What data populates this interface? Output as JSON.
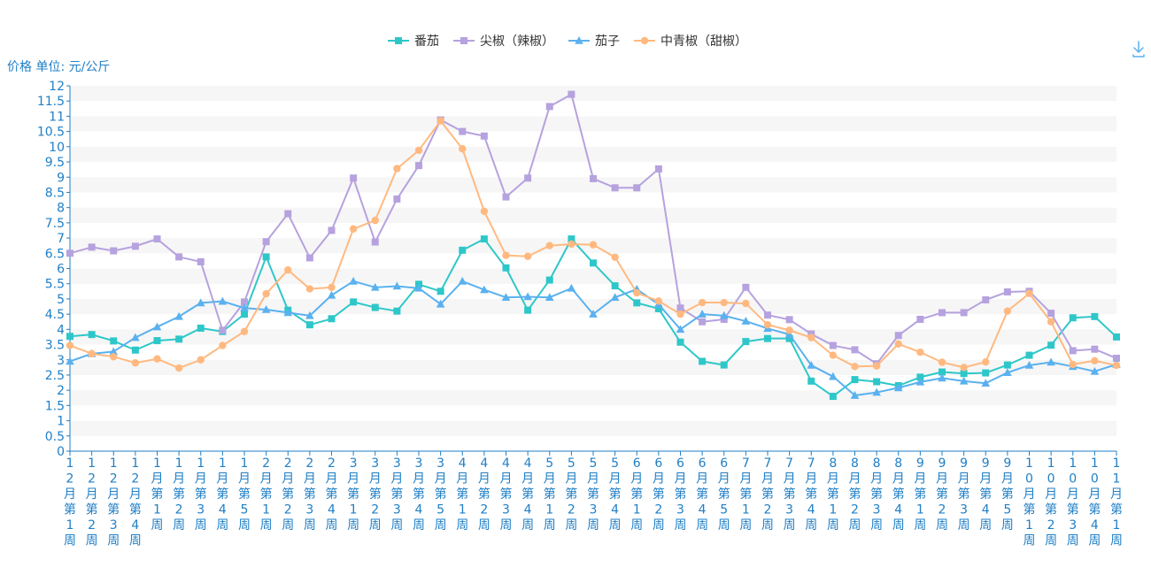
{
  "chart_data": {
    "type": "line",
    "ylabel": "价格 单位: 元/公斤",
    "ylim": [
      0,
      12
    ],
    "ytick_step": 0.5,
    "grid": "horizontal-bands",
    "legend_position": "top-center",
    "categories": [
      "12月第1周",
      "12月第2周",
      "12月第3周",
      "12月第4周",
      "1月第1周",
      "1月第2周",
      "1月第3周",
      "1月第4周",
      "1月第5周",
      "2月第1周",
      "2月第2周",
      "2月第3周",
      "2月第4周",
      "3月第1周",
      "3月第2周",
      "3月第3周",
      "3月第4周",
      "3月第5周",
      "4月第1周",
      "4月第2周",
      "4月第3周",
      "4月第4周",
      "5月第1周",
      "5月第2周",
      "5月第3周",
      "5月第4周",
      "6月第1周",
      "6月第2周",
      "6月第3周",
      "6月第4周",
      "6月第5周",
      "7月第1周",
      "7月第2周",
      "7月第3周",
      "7月第4周",
      "8月第1周",
      "8月第2周",
      "8月第3周",
      "8月第4周",
      "9月第1周",
      "9月第2周",
      "9月第3周",
      "9月第4周",
      "9月第5周",
      "10月第1周",
      "10月第2周",
      "10月第3周",
      "10月第4周",
      "11月第1周"
    ],
    "series": [
      {
        "name": "番茄",
        "color": "#2ec7c9",
        "marker": "square",
        "values": [
          3.77,
          3.83,
          3.62,
          3.32,
          3.63,
          3.68,
          4.04,
          3.93,
          4.5,
          6.38,
          4.63,
          4.15,
          4.35,
          4.9,
          4.72,
          4.6,
          5.48,
          5.25,
          6.6,
          6.97,
          6.02,
          4.63,
          5.62,
          6.97,
          6.18,
          5.43,
          4.87,
          4.68,
          3.58,
          2.95,
          2.83,
          3.6,
          3.7,
          3.7,
          2.3,
          1.8,
          2.35,
          2.28,
          2.15,
          2.43,
          2.6,
          2.55,
          2.57,
          2.83,
          3.15,
          3.48,
          4.38,
          4.42,
          3.75
        ]
      },
      {
        "name": "尖椒（辣椒）",
        "color": "#b6a2de",
        "marker": "square",
        "values": [
          6.5,
          6.7,
          6.58,
          6.73,
          6.97,
          6.38,
          6.22,
          3.97,
          4.9,
          6.88,
          7.8,
          6.35,
          7.25,
          8.97,
          6.87,
          8.28,
          9.38,
          10.88,
          10.5,
          10.35,
          8.35,
          8.97,
          11.32,
          11.72,
          8.95,
          8.65,
          8.65,
          9.27,
          4.7,
          4.25,
          4.33,
          5.38,
          4.47,
          4.32,
          3.85,
          3.47,
          3.33,
          2.87,
          3.8,
          4.33,
          4.55,
          4.55,
          4.97,
          5.23,
          5.25,
          4.53,
          3.3,
          3.35,
          3.05
        ]
      },
      {
        "name": "茄子",
        "color": "#5ab1ef",
        "marker": "triangle",
        "values": [
          2.95,
          3.2,
          3.27,
          3.73,
          4.08,
          4.42,
          4.87,
          4.92,
          4.7,
          4.65,
          4.55,
          4.45,
          5.12,
          5.58,
          5.38,
          5.42,
          5.35,
          4.83,
          5.58,
          5.3,
          5.05,
          5.07,
          5.05,
          5.35,
          4.5,
          5.05,
          5.32,
          4.82,
          4.0,
          4.5,
          4.45,
          4.27,
          4.03,
          3.83,
          2.82,
          2.45,
          1.83,
          1.93,
          2.08,
          2.27,
          2.4,
          2.3,
          2.23,
          2.58,
          2.82,
          2.92,
          2.78,
          2.62,
          2.85
        ]
      },
      {
        "name": "中青椒（甜椒）",
        "color": "#ffb980",
        "marker": "circle",
        "values": [
          3.47,
          3.2,
          3.1,
          2.9,
          3.03,
          2.73,
          3.0,
          3.47,
          3.93,
          5.17,
          5.95,
          5.33,
          5.38,
          7.3,
          7.58,
          9.28,
          9.88,
          10.85,
          9.93,
          7.88,
          6.43,
          6.4,
          6.75,
          6.8,
          6.78,
          6.37,
          5.2,
          4.93,
          4.5,
          4.88,
          4.88,
          4.85,
          4.15,
          3.97,
          3.73,
          3.15,
          2.78,
          2.8,
          3.52,
          3.25,
          2.92,
          2.75,
          2.93,
          4.6,
          5.18,
          4.25,
          2.85,
          2.97,
          2.82
        ]
      }
    ]
  },
  "colors": {
    "axis": "#1f7fc6",
    "band": "#f6f6f6",
    "icon": "#5ab1ef"
  },
  "toolbox": {
    "icon": "download-icon"
  }
}
